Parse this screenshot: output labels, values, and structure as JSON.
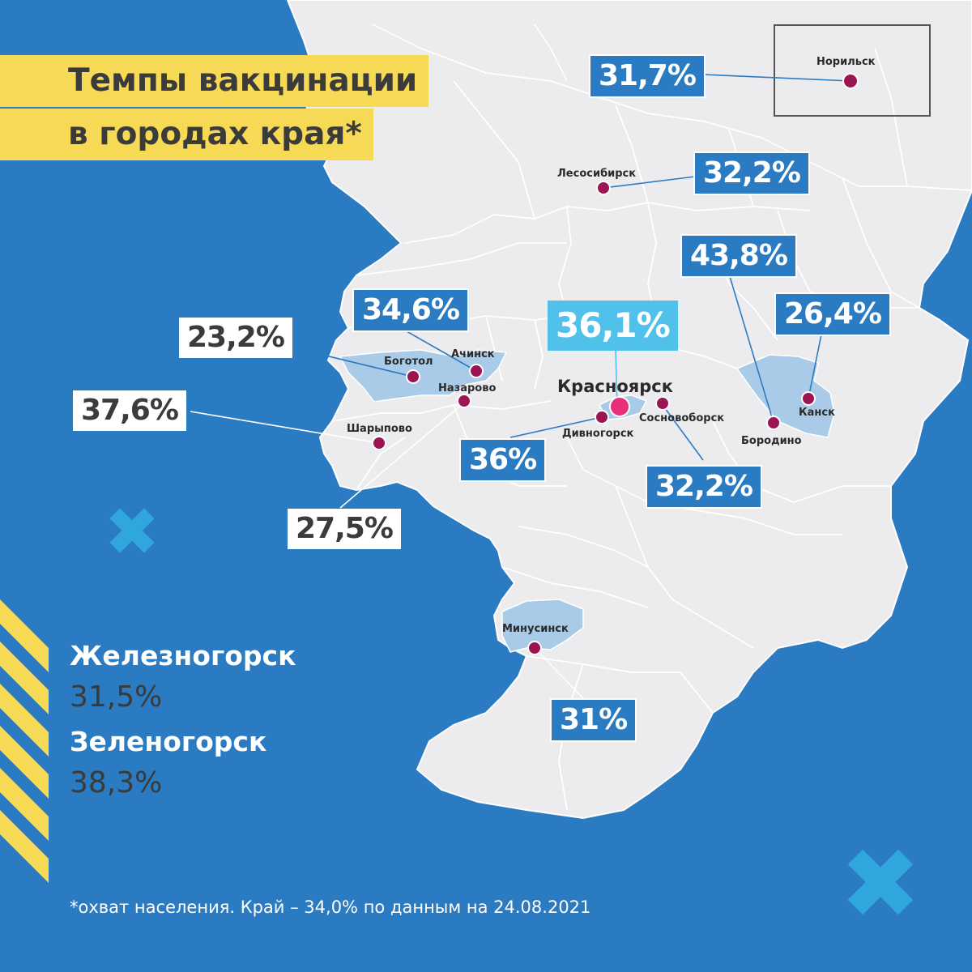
{
  "title": {
    "line1": "Темпы вакцинации",
    "line2": "в городах края*"
  },
  "cities": {
    "norilsk": {
      "name": "Норильск",
      "value": "31,7%"
    },
    "lesosibirsk": {
      "name": "Лесосибирск",
      "value": "32,2%"
    },
    "achinsk": {
      "name": "Ачинск",
      "value": "34,6%"
    },
    "bogotol": {
      "name": "Боготол",
      "value": "23,2%"
    },
    "nazarovo": {
      "name": "Назарово",
      "value": "27,5%"
    },
    "sharypovo": {
      "name": "Шарыпово",
      "value": "37,6%"
    },
    "krasnoyarsk": {
      "name": "Красноярск",
      "value": "36,1%"
    },
    "divnogorsk": {
      "name": "Дивногорск",
      "value": "36%"
    },
    "sosnovoborsk": {
      "name": "Сосновоборск",
      "value": "32,2%"
    },
    "borodino": {
      "name": "Бородино",
      "value": "43,8%"
    },
    "kansk": {
      "name": "Канск",
      "value": "26,4%"
    },
    "minusinsk": {
      "name": "Минусинск",
      "value": "31%"
    }
  },
  "side": {
    "zheleznogorsk": {
      "name": "Железногорск",
      "value": "31,5%"
    },
    "zelenogorsk": {
      "name": "Зеленогорск",
      "value": "38,3%"
    }
  },
  "footnote": "*охват населения. Край – 34,0% по данным на 24.08.2021",
  "colors": {
    "sea": "#2b7bc2",
    "land": "#ececef",
    "highlight_region": "#a9cbe7",
    "title_bg": "#f6d955",
    "city_dot": "#9c1452",
    "capital_dot": "#e8307a",
    "accent_badge": "#4fc1ea",
    "cross": "#2fa6dc"
  }
}
